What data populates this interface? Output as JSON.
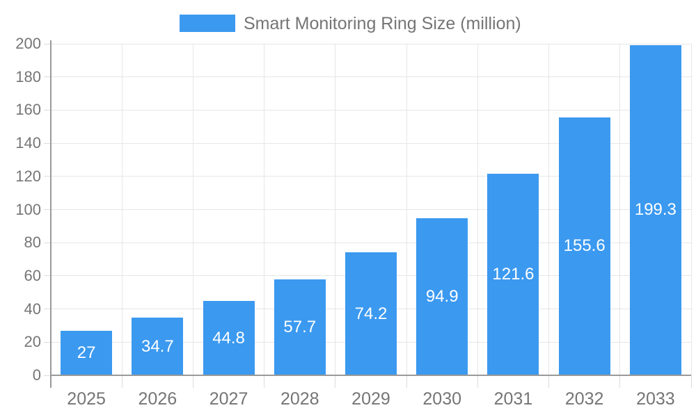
{
  "legend": {
    "label": "Smart Monitoring Ring Size (million)"
  },
  "colors": {
    "bar": "#3B99F0",
    "label_text": "#757575",
    "axis_line": "#999999",
    "gridline": "#E6E6E6",
    "tick": "#DCDCDC",
    "value_label": "#FFFFFF",
    "background": "#FFFFFF"
  },
  "chart_data": {
    "type": "bar",
    "title": "Smart Monitoring Ring Size (million)",
    "categories": [
      "2025",
      "2026",
      "2027",
      "2028",
      "2029",
      "2030",
      "2031",
      "2032",
      "2033"
    ],
    "values": [
      27,
      34.7,
      44.8,
      57.7,
      74.2,
      94.9,
      121.6,
      155.6,
      199.3
    ],
    "value_labels": [
      "27",
      "34.7",
      "44.8",
      "57.7",
      "74.2",
      "94.9",
      "121.6",
      "155.6",
      "199.3"
    ],
    "xlabel": "",
    "ylabel": "",
    "ylim": [
      0,
      200
    ],
    "yticks": [
      0,
      20,
      40,
      60,
      80,
      100,
      120,
      140,
      160,
      180,
      200
    ],
    "grid": true,
    "legend_position": "top"
  }
}
